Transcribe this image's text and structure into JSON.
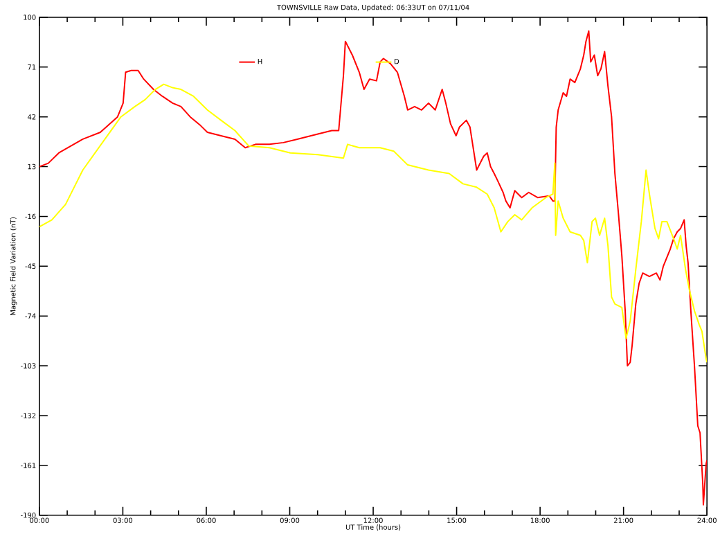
{
  "chart_data": {
    "type": "line",
    "title": "TOWNSVILLE Raw Data, Updated: 06:33UT on 07/11/04",
    "xlabel": "UT Time (hours)",
    "ylabel": "Magnetic Field Variation (nT)",
    "xlim": [
      0,
      24
    ],
    "ylim": [
      -190,
      100
    ],
    "xticks": [
      {
        "value": 0,
        "label": "00:00"
      },
      {
        "value": 1,
        "label": null
      },
      {
        "value": 2,
        "label": null
      },
      {
        "value": 3,
        "label": "03:00"
      },
      {
        "value": 4,
        "label": null
      },
      {
        "value": 5,
        "label": null
      },
      {
        "value": 6,
        "label": "06:00"
      },
      {
        "value": 7,
        "label": null
      },
      {
        "value": 8,
        "label": null
      },
      {
        "value": 9,
        "label": "09:00"
      },
      {
        "value": 10,
        "label": null
      },
      {
        "value": 11,
        "label": null
      },
      {
        "value": 12,
        "label": "12:00"
      },
      {
        "value": 13,
        "label": null
      },
      {
        "value": 14,
        "label": null
      },
      {
        "value": 15,
        "label": "15:00"
      },
      {
        "value": 16,
        "label": null
      },
      {
        "value": 17,
        "label": null
      },
      {
        "value": 18,
        "label": "18:00"
      },
      {
        "value": 19,
        "label": null
      },
      {
        "value": 20,
        "label": null
      },
      {
        "value": 21,
        "label": "21:00"
      },
      {
        "value": 22,
        "label": null
      },
      {
        "value": 23,
        "label": null
      },
      {
        "value": 24,
        "label": "24:00"
      }
    ],
    "yticks": [
      100,
      71,
      42,
      13,
      -16,
      -45,
      -74,
      -103,
      -132,
      -161,
      -190
    ],
    "legend": "top",
    "marker": "none",
    "line_style": "solid",
    "series": [
      {
        "name": "H",
        "color": "#ff0000",
        "x": [
          0,
          0.32,
          0.7,
          1.56,
          2.19,
          2.81,
          3.01,
          3.1,
          3.3,
          3.55,
          3.75,
          4.1,
          4.42,
          4.79,
          5.09,
          5.42,
          5.79,
          6.04,
          6.53,
          7.03,
          7.4,
          7.77,
          8.27,
          8.77,
          9.27,
          10.01,
          10.51,
          10.76,
          10.93,
          11.0,
          11.25,
          11.5,
          11.67,
          11.87,
          12.12,
          12.25,
          12.37,
          12.62,
          12.87,
          13.12,
          13.24,
          13.49,
          13.74,
          13.99,
          14.23,
          14.48,
          14.61,
          14.78,
          14.98,
          15.1,
          15.35,
          15.48,
          15.72,
          15.97,
          16.1,
          16.22,
          16.35,
          16.47,
          16.67,
          16.77,
          16.92,
          17.09,
          17.34,
          17.59,
          17.91,
          18.33,
          18.46,
          18.53,
          18.58,
          18.65,
          18.83,
          18.95,
          19.08,
          19.25,
          19.45,
          19.57,
          19.65,
          19.75,
          19.82,
          19.95,
          20.07,
          20.19,
          20.32,
          20.44,
          20.57,
          20.69,
          20.82,
          20.94,
          21.06,
          21.14,
          21.24,
          21.31,
          21.44,
          21.56,
          21.69,
          21.93,
          22.18,
          22.31,
          22.43,
          22.68,
          22.8,
          22.93,
          23.05,
          23.18,
          23.25,
          23.32,
          23.42,
          23.55,
          23.67,
          23.75,
          23.85,
          23.87,
          23.97,
          24.0
        ],
        "values": [
          13,
          15,
          21,
          29,
          33,
          42,
          50,
          68,
          69,
          69,
          64,
          58,
          54,
          50,
          48,
          42,
          37,
          33,
          31,
          29,
          24,
          26,
          26,
          27,
          29,
          32,
          34,
          34,
          66,
          86,
          78,
          68,
          58,
          64,
          63,
          74,
          76,
          73,
          68,
          54,
          46,
          48,
          46,
          50,
          46,
          58,
          50,
          38,
          31,
          36,
          40,
          36,
          11,
          19,
          21,
          13,
          9,
          5,
          -2,
          -7,
          -11,
          -1,
          -5,
          -2,
          -5,
          -4,
          -7,
          -7,
          36,
          46,
          56,
          54,
          64,
          62,
          70,
          78,
          86,
          92,
          74,
          78,
          66,
          70,
          80,
          60,
          42,
          9,
          -15,
          -39,
          -71,
          -103,
          -101,
          -91,
          -67,
          -55,
          -49,
          -51,
          -49,
          -53,
          -45,
          -35,
          -29,
          -25,
          -23,
          -18,
          -33,
          -43,
          -71,
          -103,
          -138,
          -142,
          -172,
          -184,
          -160,
          -158
        ]
      },
      {
        "name": "D",
        "color": "#ffff00",
        "x": [
          0,
          0.45,
          0.94,
          1.56,
          2.31,
          2.93,
          3.43,
          3.8,
          4.17,
          4.47,
          4.79,
          5.09,
          5.54,
          6.04,
          6.53,
          7.03,
          7.53,
          8.27,
          9.02,
          10.01,
          10.93,
          11.08,
          11.5,
          12.25,
          12.74,
          13.24,
          13.99,
          14.73,
          15.23,
          15.72,
          16.1,
          16.35,
          16.59,
          16.84,
          17.09,
          17.34,
          17.71,
          18.21,
          18.46,
          18.53,
          18.56,
          18.65,
          18.83,
          19.08,
          19.45,
          19.57,
          19.7,
          19.87,
          19.99,
          20.14,
          20.32,
          20.44,
          20.57,
          20.69,
          20.94,
          21.09,
          21.24,
          21.44,
          21.64,
          21.81,
          21.93,
          22.13,
          22.26,
          22.38,
          22.56,
          22.8,
          22.93,
          23.05,
          23.23,
          23.37,
          23.55,
          23.72,
          23.82,
          23.97,
          24.0
        ],
        "values": [
          -22,
          -18,
          -9,
          11,
          28,
          42,
          48,
          52,
          58,
          61,
          59,
          58,
          54,
          46,
          40,
          34,
          25,
          24,
          21,
          20,
          18,
          26,
          24,
          24,
          22,
          14,
          11,
          9,
          3,
          1,
          -3,
          -11,
          -25,
          -19,
          -15,
          -18,
          -11,
          -5,
          -3,
          15,
          -27,
          -7,
          -17,
          -25,
          -27,
          -30,
          -43,
          -19,
          -17,
          -27,
          -17,
          -33,
          -63,
          -67,
          -69,
          -87,
          -77,
          -47,
          -19,
          11,
          -3,
          -23,
          -29,
          -19,
          -19,
          -29,
          -35,
          -27,
          -47,
          -59,
          -71,
          -79,
          -83,
          -99,
          -101
        ]
      }
    ]
  }
}
